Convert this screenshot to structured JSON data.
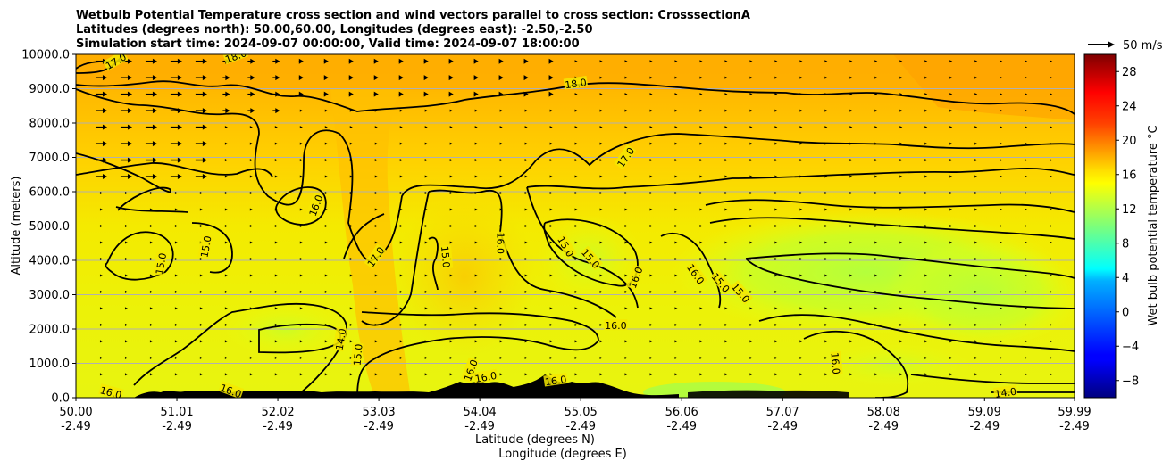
{
  "chart_data": {
    "type": "heatmap",
    "title_lines": [
      "Wetbulb Potential Temperature cross section and wind vectors parallel to cross section: CrosssectionA",
      "Latitudes (degrees north): 50.00,60.00, Longitudes (degrees east): -2.50,-2.50",
      "Simulation start time: 2024-09-07 00:00:00, Valid time: 2024-09-07 18:00:00"
    ],
    "ylabel": "Altitude (meters)",
    "xlabel_lat": "Latitude (degrees N)",
    "xlabel_lon": "Longitude (degrees E)",
    "ylim": [
      0,
      10000
    ],
    "xlim": [
      50.0,
      59.99
    ],
    "y_ticks": [
      "0.0",
      "1000.0",
      "2000.0",
      "3000.0",
      "4000.0",
      "5000.0",
      "6000.0",
      "7000.0",
      "8000.0",
      "9000.0",
      "10000.0"
    ],
    "y_tick_values": [
      0,
      1000,
      2000,
      3000,
      4000,
      5000,
      6000,
      7000,
      8000,
      9000,
      10000
    ],
    "x_ticks": [
      {
        "lat": "50.00",
        "lon": "-2.49",
        "value": 50.0
      },
      {
        "lat": "51.01",
        "lon": "-2.49",
        "value": 51.01
      },
      {
        "lat": "52.02",
        "lon": "-2.49",
        "value": 52.02
      },
      {
        "lat": "53.03",
        "lon": "-2.49",
        "value": 53.03
      },
      {
        "lat": "54.04",
        "lon": "-2.49",
        "value": 54.04
      },
      {
        "lat": "55.05",
        "lon": "-2.49",
        "value": 55.05
      },
      {
        "lat": "56.06",
        "lon": "-2.49",
        "value": 56.06
      },
      {
        "lat": "57.07",
        "lon": "-2.49",
        "value": 57.07
      },
      {
        "lat": "58.08",
        "lon": "-2.49",
        "value": 58.08
      },
      {
        "lat": "59.09",
        "lon": "-2.49",
        "value": 59.09
      },
      {
        "lat": "59.99",
        "lon": "-2.49",
        "value": 59.99
      }
    ],
    "colorbar": {
      "label": "Wet bulb potential temperature $^\\circ$C",
      "label_display": "Wet bulb potential temperature °C",
      "range": [
        -10,
        30
      ],
      "ticks": [
        "−8",
        "−4",
        "0",
        "4",
        "8",
        "12",
        "16",
        "20",
        "24",
        "28"
      ],
      "tick_values": [
        -8,
        -4,
        0,
        4,
        8,
        12,
        16,
        20,
        24,
        28
      ],
      "colormap": "jet"
    },
    "quiver_key": {
      "label": "50 m/s",
      "value": 50
    },
    "grid": "horizontal",
    "contour_levels": [
      14.0,
      15.0,
      16.0,
      17.0,
      18.0
    ],
    "contour_labels": [
      {
        "text": "17.0",
        "x": 50.4,
        "y": 9800,
        "rot": -30
      },
      {
        "text": "18.0",
        "x": 51.6,
        "y": 9950,
        "rot": -20
      },
      {
        "text": "18.0",
        "x": 55.0,
        "y": 9150,
        "rot": -8
      },
      {
        "text": "17.0",
        "x": 55.5,
        "y": 7000,
        "rot": -55
      },
      {
        "text": "16.0",
        "x": 52.4,
        "y": 5600,
        "rot": -70
      },
      {
        "text": "15.0",
        "x": 51.3,
        "y": 4400,
        "rot": -80
      },
      {
        "text": "15.0",
        "x": 50.85,
        "y": 3900,
        "rot": -80
      },
      {
        "text": "17.0",
        "x": 53.0,
        "y": 4100,
        "rot": -55
      },
      {
        "text": "15.0",
        "x": 53.7,
        "y": 4100,
        "rot": 85
      },
      {
        "text": "16.0",
        "x": 54.25,
        "y": 4500,
        "rot": 90
      },
      {
        "text": "15.0",
        "x": 54.9,
        "y": 4400,
        "rot": 60
      },
      {
        "text": "15.0",
        "x": 55.15,
        "y": 4050,
        "rot": 50
      },
      {
        "text": "16.0",
        "x": 55.6,
        "y": 3500,
        "rot": -70
      },
      {
        "text": "16.0",
        "x": 56.2,
        "y": 3600,
        "rot": 55
      },
      {
        "text": "15.0",
        "x": 56.45,
        "y": 3350,
        "rot": 50
      },
      {
        "text": "15.0",
        "x": 56.65,
        "y": 3050,
        "rot": 50
      },
      {
        "text": "16.0",
        "x": 55.4,
        "y": 2100,
        "rot": 0
      },
      {
        "text": "14.0",
        "x": 52.65,
        "y": 1700,
        "rot": -80
      },
      {
        "text": "15.0",
        "x": 52.82,
        "y": 1250,
        "rot": -85
      },
      {
        "text": "16.0",
        "x": 53.95,
        "y": 800,
        "rot": -70
      },
      {
        "text": "16.0",
        "x": 54.1,
        "y": 600,
        "rot": -10
      },
      {
        "text": "16.0",
        "x": 54.8,
        "y": 500,
        "rot": -8
      },
      {
        "text": "16.0",
        "x": 57.6,
        "y": 1000,
        "rot": 85
      },
      {
        "text": "14.0",
        "x": 59.3,
        "y": 150,
        "rot": -8
      },
      {
        "text": "16.0",
        "x": 50.35,
        "y": 150,
        "rot": 15
      },
      {
        "text": "16.0",
        "x": 51.55,
        "y": 200,
        "rot": 20
      }
    ]
  }
}
